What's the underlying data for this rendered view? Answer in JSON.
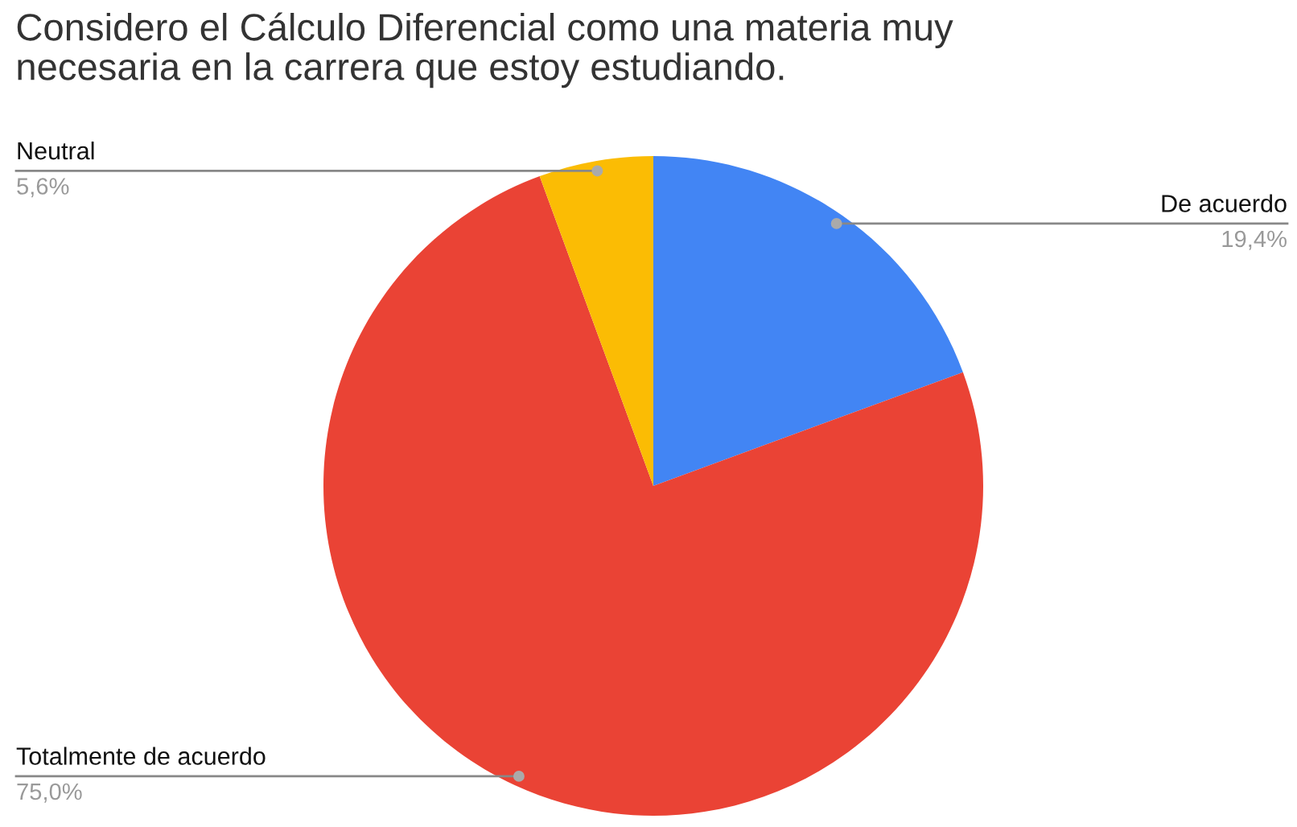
{
  "chart_data": {
    "type": "pie",
    "title": "Considero el Cálculo Diferencial como una materia muy\nnecesaria en la carrera que estoy estudiando.",
    "categories": [
      "De acuerdo",
      "Totalmente de acuerdo",
      "Neutral"
    ],
    "values": [
      19.4,
      75.0,
      5.6
    ],
    "colors": [
      "#4285f4",
      "#ea4335",
      "#fbbc04"
    ],
    "value_labels": [
      "19,4%",
      "75,0%",
      "5,6%"
    ],
    "legend": false
  }
}
